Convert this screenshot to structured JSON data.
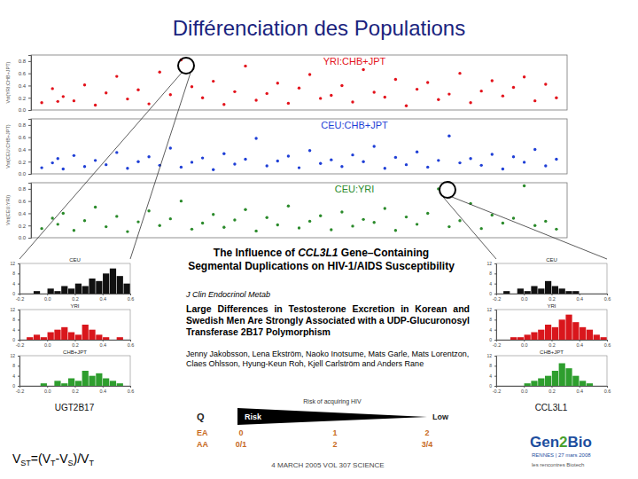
{
  "slide": {
    "title": "Différenciation des Populations",
    "formula": [
      "V",
      "ST",
      "=(V",
      "T",
      "-V",
      "S",
      ")/V",
      "T"
    ],
    "gene_left": "UGT2B17",
    "gene_right": "CCL3L1",
    "science_title": [
      "The Influence of ",
      "CCL3L1",
      " Gene–Containing Segmental Duplications on HIV-1/AIDS Susceptibility"
    ],
    "science_date": "4 MARCH 2005 VOL 307 SCIENCE",
    "journal": "J Clin Endocrinol Metab",
    "paper_title": "Large Differences in Testosterone Excretion in Korean and Swedish Men Are Strongly Associated with a UDP-Glucuronosyl Transferase 2B17 Polymorphism",
    "authors": "Jenny Jakobsson, Lena Ekström, Naoko Inotsume, Mats Garle, Mats Lorentzon, Claes Ohlsson, Hyung-Keun Roh, Kjell Carlström and Anders Rane",
    "risk": {
      "q": "Q",
      "title": "Risk of acquiring HIV",
      "high": "Risk",
      "low": "Low",
      "rows": [
        {
          "label": "EA",
          "values": [
            "0",
            "1",
            "2"
          ]
        },
        {
          "label": "AA",
          "values": [
            "0/1",
            "2",
            "3/4"
          ]
        }
      ]
    },
    "logo": {
      "name": [
        "Gen",
        "2",
        "Bio"
      ],
      "place": "RENNES | 27 mars 2008",
      "tagline": "les rencontres Biotech"
    }
  },
  "chart_data": [
    {
      "type": "scatter",
      "title": "YRI:CHB+JPT",
      "y_label": "Vst(YRI:CHB+JPT)",
      "color": "#e3121b",
      "tick_labels": "y",
      "x": [
        2,
        4,
        5,
        6,
        8,
        10,
        12,
        14,
        16,
        18,
        20,
        22,
        24,
        26,
        28,
        30,
        32,
        34,
        36,
        38,
        40,
        42,
        44,
        46,
        48,
        50,
        52,
        54,
        56,
        58,
        60,
        62,
        64,
        66,
        68,
        70,
        72,
        74,
        76,
        78,
        80,
        82,
        84,
        86,
        88,
        90,
        92,
        94,
        96,
        98
      ],
      "values": [
        0.12,
        0.35,
        0.14,
        0.22,
        0.15,
        0.41,
        0.08,
        0.28,
        0.55,
        0.18,
        0.33,
        0.1,
        0.62,
        0.25,
        0.82,
        0.38,
        0.2,
        0.47,
        0.09,
        0.3,
        0.72,
        0.16,
        0.27,
        0.44,
        0.11,
        0.36,
        0.58,
        0.19,
        0.24,
        0.4,
        0.13,
        0.66,
        0.29,
        0.21,
        0.5,
        0.07,
        0.34,
        0.45,
        0.17,
        0.26,
        0.6,
        0.12,
        0.31,
        0.48,
        0.23,
        0.37,
        0.54,
        0.15,
        0.42,
        0.2
      ],
      "xlim": [
        0,
        100
      ],
      "ylim": [
        0,
        0.9
      ],
      "yticks": [
        {
          "value": 0,
          "label": "0.0"
        },
        0.2,
        0.4,
        0.6,
        0.8
      ]
    },
    {
      "type": "scatter",
      "title": "CEU:CHB+JPT",
      "y_label": "Vst(CEU:CHB+JPT)",
      "color": "#1f3fd6",
      "tick_labels": "y",
      "x": [
        2,
        4,
        5,
        6,
        8,
        10,
        12,
        14,
        16,
        18,
        20,
        22,
        24,
        26,
        28,
        30,
        32,
        34,
        36,
        38,
        40,
        42,
        44,
        46,
        48,
        50,
        52,
        54,
        56,
        58,
        60,
        62,
        64,
        66,
        68,
        70,
        72,
        74,
        76,
        78,
        80,
        82,
        84,
        86,
        88,
        90,
        92,
        94,
        96,
        98
      ],
      "values": [
        0.1,
        0.18,
        0.25,
        0.08,
        0.3,
        0.12,
        0.22,
        0.15,
        0.35,
        0.09,
        0.2,
        0.28,
        0.14,
        0.42,
        0.11,
        0.19,
        0.26,
        0.07,
        0.33,
        0.16,
        0.24,
        0.58,
        0.13,
        0.21,
        0.29,
        0.1,
        0.38,
        0.17,
        0.23,
        0.12,
        0.31,
        0.2,
        0.45,
        0.09,
        0.27,
        0.15,
        0.36,
        0.11,
        0.22,
        0.62,
        0.18,
        0.25,
        0.14,
        0.32,
        0.08,
        0.28,
        0.19,
        0.4,
        0.13,
        0.24
      ],
      "xlim": [
        0,
        100
      ],
      "ylim": [
        0,
        0.9
      ],
      "yticks": [
        {
          "value": 0,
          "label": "0.0"
        },
        0.2,
        0.4,
        0.6,
        0.8
      ]
    },
    {
      "type": "scatter",
      "title": "CEU:YRI",
      "y_label": "Vst(CEU:YRI)",
      "color": "#2a8a2a",
      "tick_labels": "y",
      "x": [
        2,
        4,
        5,
        6,
        8,
        10,
        12,
        14,
        16,
        18,
        20,
        22,
        24,
        26,
        28,
        30,
        32,
        34,
        36,
        38,
        40,
        42,
        44,
        46,
        48,
        50,
        52,
        54,
        56,
        58,
        60,
        62,
        64,
        66,
        68,
        70,
        72,
        74,
        76,
        78,
        80,
        82,
        84,
        86,
        88,
        90,
        92,
        94,
        96,
        98
      ],
      "values": [
        0.15,
        0.32,
        0.22,
        0.4,
        0.12,
        0.28,
        0.5,
        0.18,
        0.35,
        0.1,
        0.26,
        0.44,
        0.2,
        0.31,
        0.6,
        0.14,
        0.24,
        0.38,
        0.17,
        0.29,
        0.46,
        0.11,
        0.33,
        0.21,
        0.52,
        0.16,
        0.27,
        0.36,
        0.13,
        0.42,
        0.19,
        0.3,
        0.25,
        0.48,
        0.12,
        0.34,
        0.22,
        0.4,
        0.8,
        0.18,
        0.28,
        0.56,
        0.15,
        0.37,
        0.24,
        0.32,
        0.85,
        0.2,
        0.27,
        0.14
      ],
      "xlim": [
        0,
        100
      ],
      "ylim": [
        0,
        0.9
      ],
      "yticks": [
        {
          "value": 0,
          "label": "0.0"
        },
        0.2,
        0.4,
        0.6,
        0.8
      ]
    },
    {
      "type": "histogram",
      "title": "CEU",
      "color": "#111111",
      "bins": [
        -0.2,
        -0.15,
        -0.1,
        -0.05,
        0,
        0.05,
        0.1,
        0.15,
        0.2,
        0.25,
        0.3,
        0.35,
        0.4,
        0.45,
        0.5,
        0.55,
        0.6
      ],
      "values": [
        0,
        0,
        1,
        0,
        2,
        1,
        3,
        2,
        4,
        3,
        6,
        5,
        8,
        10,
        7,
        4
      ],
      "xlim": [
        -0.2,
        0.6
      ],
      "ylim": [
        0,
        12
      ],
      "xticks": [
        -0.2,
        {
          "value": 0,
          "label": "0.0"
        },
        0.2,
        0.4,
        0.6
      ],
      "yticks": [
        0,
        4,
        8,
        12
      ]
    },
    {
      "type": "histogram",
      "title": "YRI",
      "color": "#d9161c",
      "bins": [
        -0.2,
        -0.15,
        -0.1,
        -0.05,
        0,
        0.05,
        0.1,
        0.15,
        0.2,
        0.25,
        0.3,
        0.35,
        0.4,
        0.45,
        0.5,
        0.55,
        0.6
      ],
      "values": [
        0,
        1,
        2,
        1,
        3,
        4,
        5,
        3,
        2,
        6,
        4,
        2,
        1,
        0,
        1,
        0
      ],
      "xlim": [
        -0.2,
        0.6
      ],
      "ylim": [
        0,
        12
      ],
      "xticks": [
        -0.2,
        {
          "value": 0,
          "label": "0.0"
        },
        0.2,
        0.4,
        0.6
      ],
      "yticks": [
        0,
        4,
        8,
        12
      ]
    },
    {
      "type": "histogram",
      "title": "CHB+JPT",
      "color": "#2e9e2e",
      "bins": [
        -0.2,
        -0.15,
        -0.1,
        -0.05,
        0,
        0.05,
        0.1,
        0.15,
        0.2,
        0.25,
        0.3,
        0.35,
        0.4,
        0.45,
        0.5,
        0.55,
        0.6
      ],
      "values": [
        0,
        0,
        0,
        1,
        0,
        2,
        1,
        3,
        2,
        6,
        4,
        5,
        3,
        2,
        1,
        0
      ],
      "xlim": [
        -0.2,
        0.6
      ],
      "ylim": [
        0,
        12
      ],
      "xticks": [
        -0.2,
        {
          "value": 0,
          "label": "0.0"
        },
        0.2,
        0.4,
        0.6
      ],
      "yticks": [
        0,
        4,
        8,
        12
      ]
    },
    {
      "type": "histogram",
      "title": "CEU",
      "color": "#111111",
      "bins": [
        -0.2,
        -0.15,
        -0.1,
        -0.05,
        0,
        0.05,
        0.1,
        0.15,
        0.2,
        0.25,
        0.3,
        0.35,
        0.4,
        0.45,
        0.5,
        0.55,
        0.6
      ],
      "values": [
        0,
        1,
        0,
        2,
        1,
        3,
        2,
        5,
        3,
        2,
        1,
        1,
        0,
        0,
        0,
        0
      ],
      "xlim": [
        -0.2,
        0.6
      ],
      "ylim": [
        0,
        12
      ],
      "xticks": [
        -0.2,
        {
          "value": 0,
          "label": "0.0"
        },
        0.2,
        0.4,
        0.6
      ],
      "yticks": [
        0,
        4,
        8,
        12
      ]
    },
    {
      "type": "histogram",
      "title": "YRI",
      "color": "#d9161c",
      "bins": [
        -0.2,
        -0.15,
        -0.1,
        -0.05,
        0,
        0.05,
        0.1,
        0.15,
        0.2,
        0.25,
        0.3,
        0.35,
        0.4,
        0.45,
        0.5,
        0.55,
        0.6
      ],
      "values": [
        0,
        0,
        1,
        1,
        2,
        3,
        4,
        6,
        5,
        8,
        10,
        7,
        5,
        4,
        2,
        1
      ],
      "xlim": [
        -0.2,
        0.6
      ],
      "ylim": [
        0,
        12
      ],
      "xticks": [
        -0.2,
        {
          "value": 0,
          "label": "0.0"
        },
        0.2,
        0.4,
        0.6
      ],
      "yticks": [
        0,
        4,
        8,
        12
      ]
    },
    {
      "type": "histogram",
      "title": "CHB+JPT",
      "color": "#2e9e2e",
      "bins": [
        -0.2,
        -0.15,
        -0.1,
        -0.05,
        0,
        0.05,
        0.1,
        0.15,
        0.2,
        0.25,
        0.3,
        0.35,
        0.4,
        0.45,
        0.5,
        0.55,
        0.6
      ],
      "values": [
        0,
        0,
        0,
        0,
        1,
        2,
        3,
        4,
        6,
        9,
        7,
        4,
        2,
        1,
        0,
        0
      ],
      "xlim": [
        -0.2,
        0.6
      ],
      "ylim": [
        0,
        12
      ],
      "xticks": [
        -0.2,
        {
          "value": 0,
          "label": "0.0"
        },
        0.2,
        0.4,
        0.6
      ],
      "yticks": [
        0,
        4,
        8,
        12
      ]
    }
  ]
}
